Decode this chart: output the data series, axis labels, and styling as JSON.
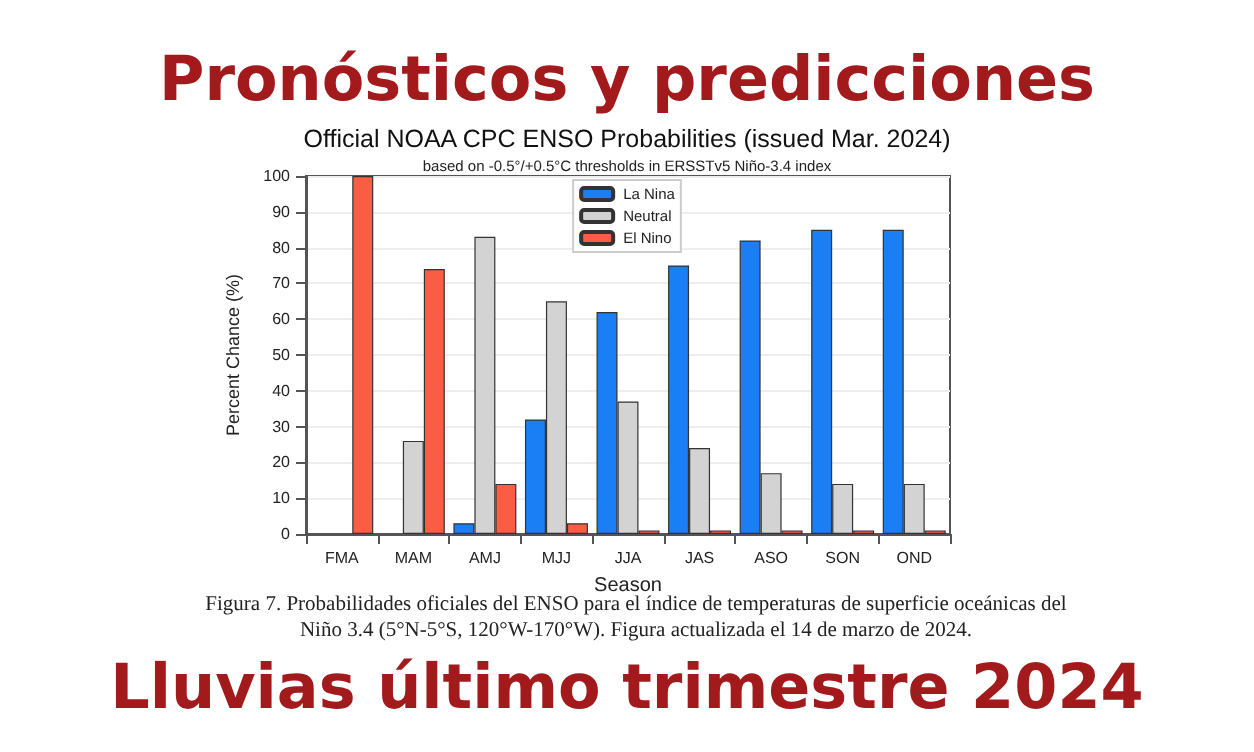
{
  "chart_data": {
    "type": "bar",
    "title": "Official NOAA CPC ENSO Probabilities (issued Mar. 2024)",
    "subtitle": "based on -0.5°/+0.5°C thresholds in ERSSTv5 Niño-3.4 index",
    "xlabel": "Season",
    "ylabel": "Percent Chance (%)",
    "annotations": [
      "Pronósticos y predicciones",
      "Figura 7. Probabilidades oficiales del ENSO para el índice de temperaturas de superficie oceánicas del Niño 3.4 (5°N-5°S, 120°W-170°W). Figura actualizada el 14 de marzo de 2024.",
      "Lluvias último trimestre 2024"
    ],
    "categories": [
      "FMA",
      "MAM",
      "AMJ",
      "MJJ",
      "JJA",
      "JAS",
      "ASO",
      "SON",
      "OND"
    ],
    "series": [
      {
        "name": "La Nina",
        "color": "#1a7ef5",
        "values": [
          0,
          0,
          3,
          32,
          62,
          75,
          82,
          85,
          85
        ]
      },
      {
        "name": "Neutral",
        "color": "#d3d3d3",
        "values": [
          0,
          26,
          83,
          65,
          37,
          24,
          17,
          14,
          14
        ]
      },
      {
        "name": "El Nino",
        "color": "#f95e44",
        "values": [
          100,
          74,
          14,
          3,
          1,
          1,
          1,
          1,
          1
        ]
      }
    ],
    "ylim": [
      0,
      100
    ],
    "yticks": [
      0,
      10,
      20,
      30,
      40,
      50,
      60,
      70,
      80,
      90,
      100
    ],
    "grid": "y",
    "legend": "top"
  }
}
